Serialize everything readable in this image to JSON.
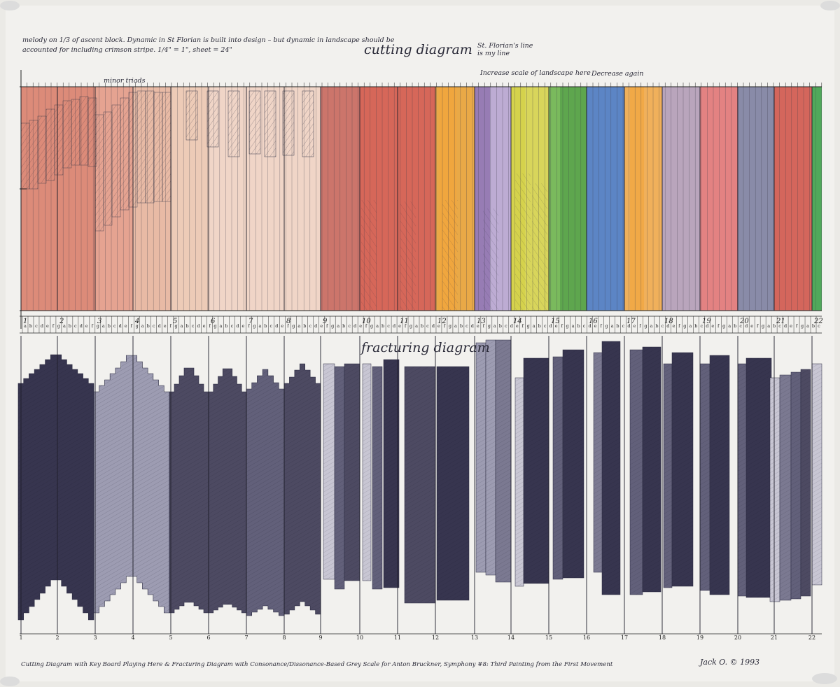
{
  "header": {
    "note_line1": "melody on 1/3 of ascent block. Dynamic in St Florian is built into design – but dynamic in landscape should be",
    "note_line2": "accounted for including crimson stripe. 1/4\" = 1\", sheet = 24\"",
    "title_cutting": "cutting diagram",
    "st_florian_note": "St. Florian's line is my line",
    "increase_note": "Increase scale of landscape here",
    "decrease_note": "Decrease again",
    "minor_triads": "minor triads"
  },
  "cutting": {
    "colors": [
      "#d9806c",
      "#e39a86",
      "#e7b49c",
      "#ecc7b0",
      "#f0d2c2",
      "#c8675c",
      "#d35848",
      "#e8a134",
      "#f2a53a",
      "#8d6fad",
      "#b7a4cf",
      "#d5d24a",
      "#6db44c",
      "#4b9a45",
      "#4b79c0",
      "#f0a84a",
      "#b29cb6",
      "#e17676",
      "#7d7fa0",
      "#d0574b",
      "#3fa04a"
    ]
  },
  "measures": {
    "numbers": [
      "1",
      "2",
      "3",
      "4",
      "5",
      "6",
      "7",
      "8",
      "9",
      "10",
      "11",
      "12",
      "13",
      "14",
      "15",
      "16",
      "17",
      "18",
      "19",
      "20",
      "21",
      "22"
    ],
    "note_letters": "a b c d e f g a b c d e f g a b c d e f g a b c d e f g a b c d e f g a b c d e f g a b c d e f g a b c d e f g a b c d e f g a b c d e f g a b c d e f g a b c d e f g a b c d e f g a b c d e f g a b c d e f g a b c d e f g a b c d e f g a b c d e f g a b c d e f g a b c d e f g a b c"
  },
  "fracturing": {
    "title": "fracturing diagram",
    "grays": [
      "#37354f",
      "#9d9cb2",
      "#4d4a62",
      "#62607a",
      "#7b7991",
      "#c8c6d3"
    ]
  },
  "footer": {
    "caption": "Cutting Diagram with Key Board Playing Here & Fracturing Diagram with Consonance/Dissonance-Based Grey Scale for Anton Bruckner, Symphony #8: Third Painting from the First Movement",
    "signature": "Jack O. © 1993"
  }
}
